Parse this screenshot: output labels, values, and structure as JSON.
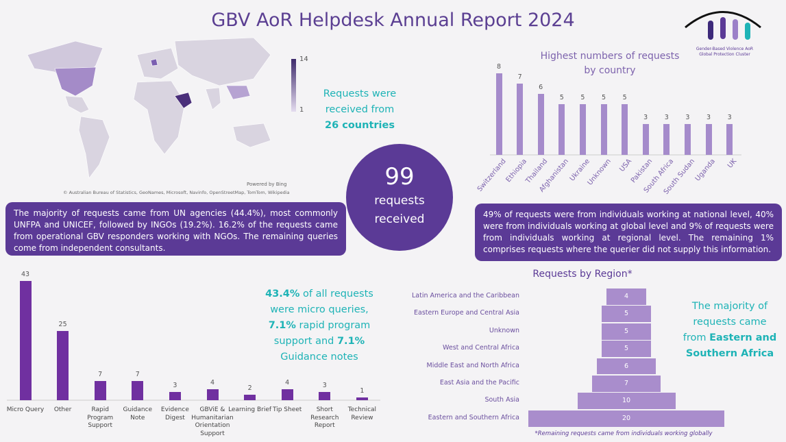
{
  "header": {
    "title": "GBV AoR Helpdesk Annual Report 2024",
    "logo_caption": [
      "Gender-Based Violence AoR",
      "Global Protection Cluster"
    ]
  },
  "map": {
    "legend_max": 14,
    "legend_min": 1,
    "credit": "© Australian Bureau of Statistics, GeoNames, Microsoft, Navinfo, OpenStreetMap, TomTom, Wikipedia",
    "powered_by": "Powered by Bing"
  },
  "countries_note": {
    "lines": [
      "Requests were",
      "received from"
    ],
    "highlight": "26 countries"
  },
  "total": {
    "count": 99,
    "label_lines": [
      "requests",
      "received"
    ]
  },
  "agencies_note": "The majority of requests came from UN agencies (44.4%), most commonly UNFPA and UNICEF, followed by INGOs (19.2%). 16.2% of the requests came from  operational GBV responders working with NGOs. The remaining queries come from independent consultants.",
  "level_note": "49% of requests were from individuals working at national level, 40% were from individuals working at global level and 9% of requests were from individuals working at regional level. The remaining 1% comprises requests where the querier did not supply this information.",
  "types_note": {
    "parts": [
      "43.4%",
      " of all requests were micro queries, ",
      "7.1%",
      " rapid program support and ",
      "7.1%",
      " Guidance notes"
    ]
  },
  "region_note": {
    "lead": "The majority of requests came from",
    "highlight": "Eastern and Southern Africa"
  },
  "chart_data": [
    {
      "type": "bar",
      "title": "Highest numbers of requests by country",
      "color": "#a58bcb",
      "categories": [
        "Switzerland",
        "Ethiopia",
        "Thailand",
        "Afghanistan",
        "Ukraine",
        "Unknown",
        "USA",
        "Pakistan",
        "South Africa",
        "South Sudan",
        "Uganda",
        "UK"
      ],
      "values": [
        8,
        7,
        6,
        5,
        5,
        5,
        5,
        3,
        3,
        3,
        3,
        3
      ]
    },
    {
      "type": "bar",
      "color": "#7030a0",
      "categories": [
        "Micro Query",
        "Other",
        "Rapid Program Support",
        "Guidance Note",
        "Evidence Digest",
        "GBViE & Humanitarian Orientation Support",
        "Learning Brief",
        "Tip Sheet",
        "Short Research Report",
        "Technical Review"
      ],
      "values": [
        43,
        25,
        7,
        7,
        3,
        4,
        2,
        4,
        3,
        1
      ]
    },
    {
      "type": "funnel",
      "title": "Requests by Region*",
      "color": "#a98dcc",
      "note": "*Remaining requests came from individuals working globally",
      "categories": [
        "Latin America and the Caribbean",
        "Eastern Europe and Central Asia",
        "Unknown",
        "West and Central Africa",
        "Middle East and North Africa",
        "East Asia and the Pacific",
        "South Asia",
        "Eastern and Southern Africa"
      ],
      "values": [
        4,
        5,
        5,
        5,
        6,
        7,
        10,
        20
      ]
    }
  ]
}
